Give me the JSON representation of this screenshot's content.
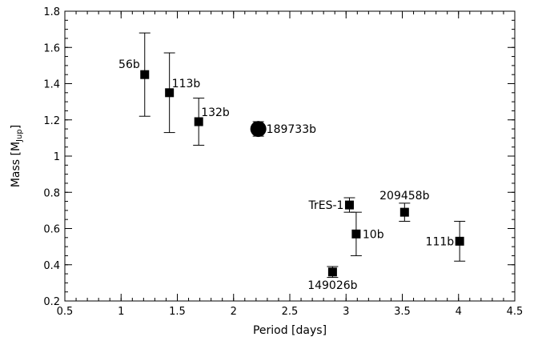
{
  "chart_data": {
    "type": "scatter",
    "title": "",
    "xlabel": "Period [days]",
    "ylabel": "Mass [M",
    "ylabel_subscript": "Jup",
    "ylabel_suffix": "]",
    "xlim": [
      0.5,
      4.5
    ],
    "ylim": [
      0.2,
      1.8
    ],
    "xticks": [
      0.5,
      1,
      1.5,
      2,
      2.5,
      3,
      3.5,
      4,
      4.5
    ],
    "xtick_labels": [
      "0.5",
      "1",
      "1.5",
      "2",
      "2.5",
      "3",
      "3.5",
      "4",
      "4.5"
    ],
    "yticks": [
      0.2,
      0.4,
      0.6,
      0.8,
      1,
      1.2,
      1.4,
      1.6,
      1.8
    ],
    "ytick_labels": [
      "0.2",
      "0.4",
      "0.6",
      "0.8",
      "1",
      "1.2",
      "1.4",
      "1.6",
      "1.8"
    ],
    "grid": false,
    "points": [
      {
        "label": "56b",
        "x": 1.21,
        "y": 1.45,
        "err": 0.23,
        "marker": "square",
        "label_pos": "left-above"
      },
      {
        "label": "113b",
        "x": 1.43,
        "y": 1.35,
        "err": 0.22,
        "marker": "square",
        "label_pos": "right-above"
      },
      {
        "label": "132b",
        "x": 1.69,
        "y": 1.19,
        "err": 0.13,
        "marker": "square",
        "label_pos": "right-above"
      },
      {
        "label": "189733b",
        "x": 2.22,
        "y": 1.15,
        "err": 0.04,
        "marker": "circle",
        "label_pos": "right"
      },
      {
        "label": "TrES-1",
        "x": 3.03,
        "y": 0.73,
        "err": 0.04,
        "marker": "square",
        "label_pos": "left"
      },
      {
        "label": "10b",
        "x": 3.09,
        "y": 0.57,
        "err": 0.12,
        "marker": "square",
        "label_pos": "right"
      },
      {
        "label": "209458b",
        "x": 3.52,
        "y": 0.69,
        "err": 0.05,
        "marker": "square",
        "label_pos": "above"
      },
      {
        "label": "111b",
        "x": 4.01,
        "y": 0.53,
        "err": 0.11,
        "marker": "square",
        "label_pos": "left"
      },
      {
        "label": "149026b",
        "x": 2.88,
        "y": 0.36,
        "err": 0.03,
        "marker": "square",
        "label_pos": "below"
      }
    ]
  }
}
